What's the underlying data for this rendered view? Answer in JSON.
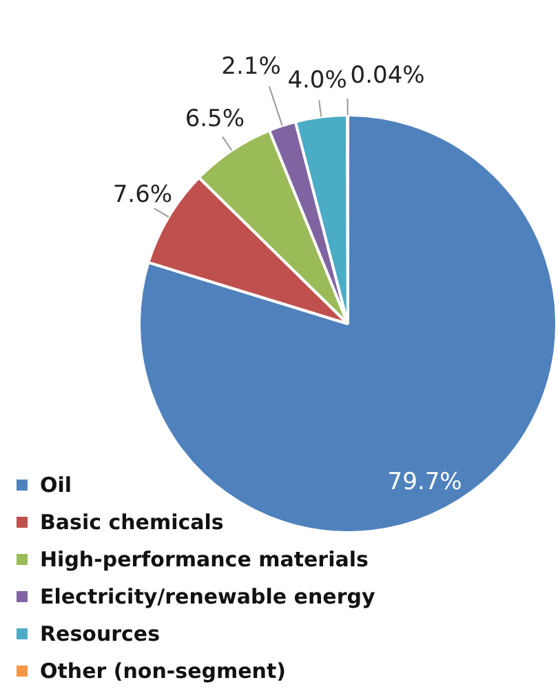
{
  "chart_data": {
    "type": "pie",
    "categories": [
      "Oil",
      "Basic chemicals",
      "High-performance materials",
      "Electricity/renewable energy",
      "Resources",
      "Other (non-segment)"
    ],
    "values": [
      79.7,
      7.6,
      6.5,
      2.1,
      4.0,
      0.04
    ],
    "colors": [
      "#4f81bd",
      "#c0504d",
      "#9bbb59",
      "#8064a2",
      "#4bacc6",
      "#f79646"
    ],
    "value_labels": [
      "79.7%",
      "7.6%",
      "6.5%",
      "2.1%",
      "4.0%",
      "0.04%"
    ],
    "legend": "bottom left"
  }
}
